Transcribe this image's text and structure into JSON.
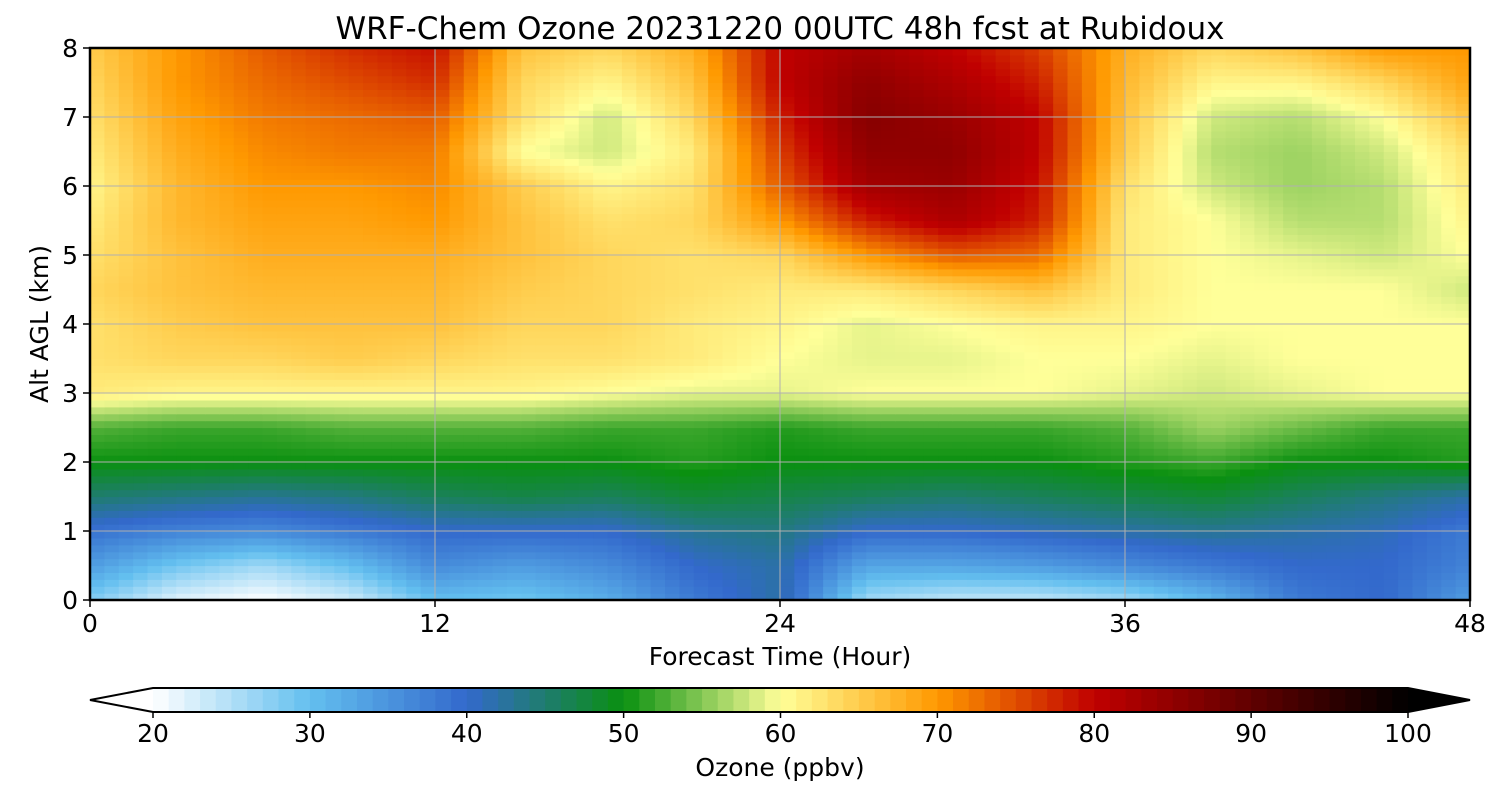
{
  "chart_data": {
    "type": "heatmap",
    "title": "WRF-Chem Ozone  20231220 00UTC 48h fcst at Rubidoux",
    "xlabel": "Forecast Time (Hour)",
    "ylabel": "Alt AGL (km)",
    "xlim": [
      0,
      48
    ],
    "ylim": [
      0,
      8
    ],
    "x_ticks": [
      0,
      12,
      24,
      36,
      48
    ],
    "y_ticks": [
      0,
      1,
      2,
      3,
      4,
      5,
      6,
      7,
      8
    ],
    "grid": true,
    "x": [
      0,
      3,
      6,
      9,
      12,
      15,
      18,
      21,
      24,
      27,
      30,
      33,
      36,
      39,
      42,
      45,
      48
    ],
    "y": [
      0,
      0.5,
      1,
      1.5,
      2,
      2.5,
      3,
      3.5,
      4,
      4.5,
      5,
      5.5,
      6,
      6.5,
      7,
      7.5,
      8
    ],
    "z": [
      [
        28,
        22,
        20,
        23,
        30,
        29,
        32,
        38,
        42,
        26,
        24,
        24,
        26,
        31,
        38,
        40,
        34
      ],
      [
        34,
        29,
        26,
        30,
        36,
        34,
        36,
        40,
        42,
        33,
        33,
        34,
        36,
        38,
        40,
        40,
        37
      ],
      [
        39,
        37,
        36,
        38,
        40,
        40,
        40,
        43,
        44,
        40,
        40,
        41,
        42,
        43,
        42,
        41,
        38
      ],
      [
        45,
        44,
        43,
        44,
        46,
        47,
        46,
        48,
        47,
        46,
        45,
        46,
        47,
        48,
        46,
        44,
        42
      ],
      [
        50,
        50,
        50,
        50,
        50,
        50,
        50,
        51,
        50,
        50,
        50,
        50,
        51,
        52,
        50,
        50,
        51
      ],
      [
        53,
        52,
        52,
        53,
        53,
        53,
        52,
        52,
        51,
        52,
        52,
        52,
        53,
        56,
        54,
        52,
        52
      ],
      [
        62,
        61,
        61,
        61,
        61,
        61,
        60,
        59,
        59,
        60,
        60,
        60,
        59,
        58,
        59,
        60,
        60
      ],
      [
        63,
        64,
        64,
        65,
        64,
        63,
        63,
        62,
        60,
        59,
        59,
        60,
        60,
        59,
        60,
        60,
        60
      ],
      [
        63,
        65,
        66,
        66,
        66,
        64,
        64,
        62,
        61,
        59,
        60,
        61,
        61,
        60,
        60,
        60,
        60
      ],
      [
        64,
        66,
        67,
        67,
        67,
        65,
        64,
        63,
        62,
        62,
        64,
        66,
        62,
        60,
        60,
        60,
        58
      ],
      [
        63,
        66,
        68,
        68,
        68,
        66,
        64,
        63,
        64,
        70,
        74,
        73,
        62,
        60,
        59,
        58,
        60
      ],
      [
        62,
        67,
        69,
        69,
        70,
        66,
        63,
        64,
        70,
        78,
        82,
        78,
        62,
        60,
        57,
        57,
        61
      ],
      [
        61,
        67,
        70,
        70,
        71,
        65,
        61,
        63,
        74,
        83,
        84,
        79,
        63,
        58,
        56,
        57,
        62
      ],
      [
        62,
        68,
        71,
        72,
        72,
        60,
        58,
        62,
        76,
        85,
        85,
        80,
        65,
        57,
        56,
        58,
        63
      ],
      [
        63,
        69,
        72,
        73,
        74,
        63,
        58,
        64,
        78,
        86,
        84,
        80,
        66,
        58,
        57,
        60,
        66
      ],
      [
        64,
        70,
        73,
        75,
        77,
        64,
        61,
        66,
        80,
        85,
        82,
        78,
        67,
        61,
        61,
        64,
        69
      ],
      [
        65,
        70,
        74,
        77,
        79,
        66,
        64,
        68,
        80,
        83,
        80,
        76,
        68,
        64,
        66,
        70,
        70
      ]
    ],
    "colorbar": {
      "label": "Ozone  (ppbv)",
      "min": 20,
      "max": 100,
      "ticks": [
        20,
        30,
        40,
        50,
        60,
        70,
        80,
        90,
        100
      ],
      "extend": "both",
      "colors": [
        "#ffffff",
        "#63bfef",
        "#3369cc",
        "#0a9010",
        "#ffff99",
        "#ff9900",
        "#c00000",
        "#000000"
      ],
      "stops": [
        20,
        30,
        40,
        50,
        60,
        70,
        80,
        100
      ]
    }
  }
}
